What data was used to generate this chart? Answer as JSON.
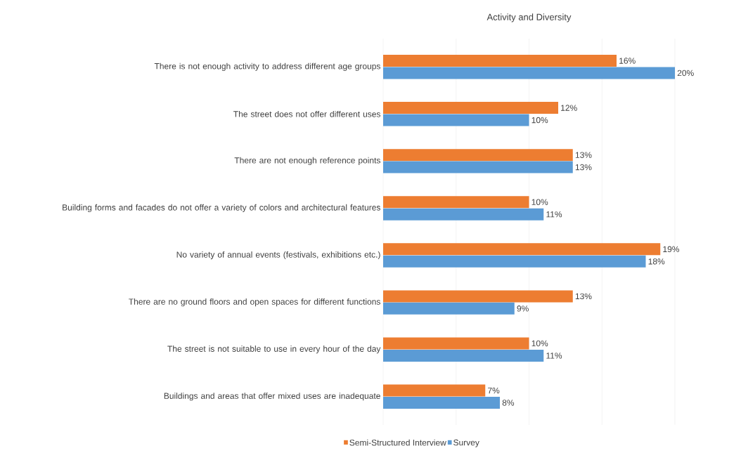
{
  "chart_data": {
    "type": "bar",
    "orientation": "horizontal",
    "title": "Activity and Diversity",
    "categories": [
      "There is not enough activity to address different age groups",
      "The street does not offer different uses",
      "There are not enough reference points",
      "Building forms and facades do not offer a variety of colors and architectural features",
      "No variety of annual events (festivals, exhibitions etc.)",
      "There are no ground floors and open spaces for different functions",
      "The street is not suitable to use in every hour of the day",
      "Buildings and areas that offer mixed uses are inadequate"
    ],
    "series": [
      {
        "name": "Semi-Structured Interview",
        "color": "#ed7d31",
        "values": [
          16,
          12,
          13,
          10,
          19,
          13,
          10,
          7
        ],
        "value_labels": [
          "16%",
          "12%",
          "13%",
          "10%",
          "19%",
          "13%",
          "10%",
          "7%"
        ]
      },
      {
        "name": "Survey",
        "color": "#5b9bd5",
        "values": [
          20,
          10,
          13,
          11,
          18,
          9,
          11,
          8
        ],
        "value_labels": [
          "20%",
          "10%",
          "13%",
          "11%",
          "18%",
          "9%",
          "11%",
          "8%"
        ]
      }
    ],
    "xlim": [
      0,
      20
    ],
    "xticks": [
      {
        "value": 0,
        "label": null
      },
      {
        "value": 5,
        "label": null
      },
      {
        "value": 10,
        "label": null
      },
      {
        "value": 15,
        "label": null
      },
      {
        "value": 20,
        "label": null
      }
    ],
    "tick_labels": "y",
    "grid": "x",
    "legend": "bottom"
  }
}
